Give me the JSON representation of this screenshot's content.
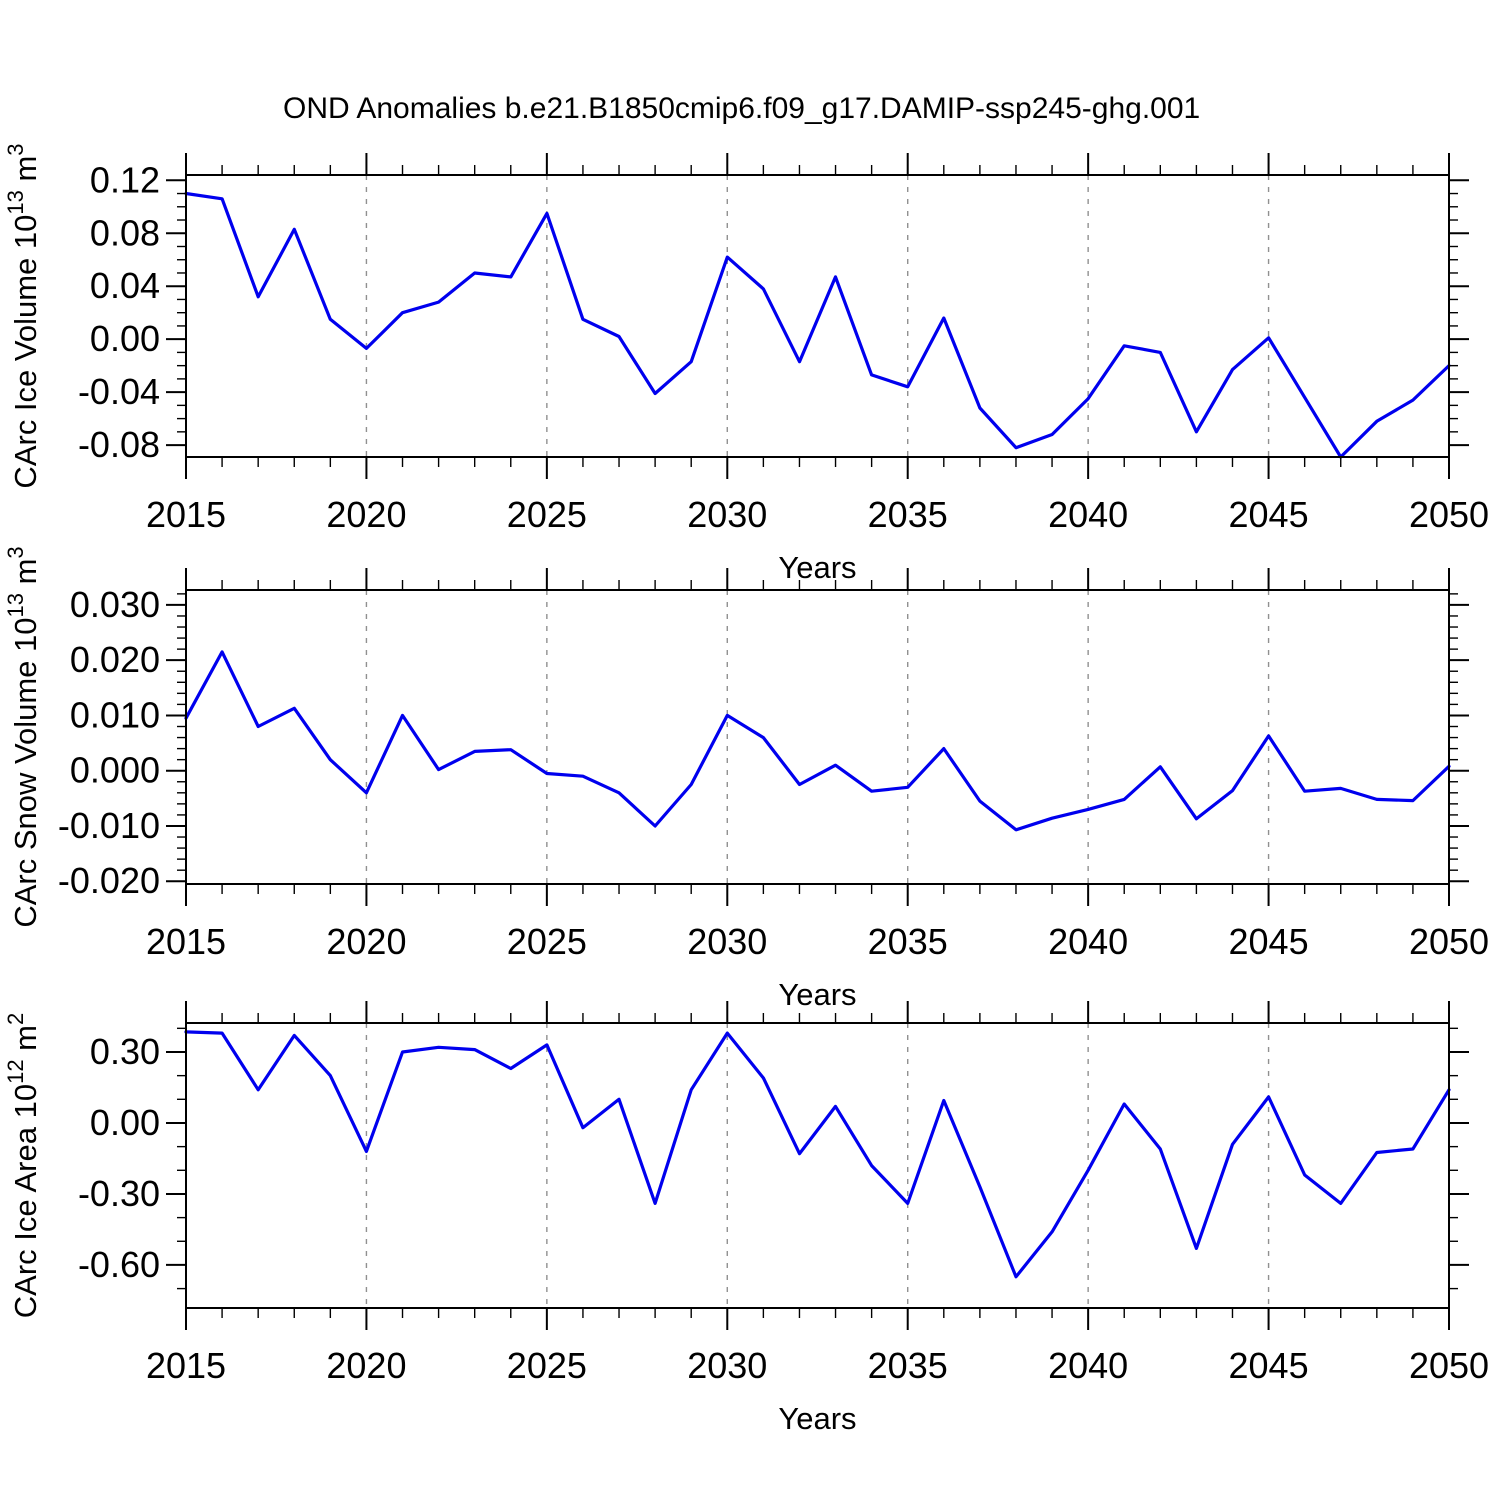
{
  "title": "OND Anomalies b.e21.B1850cmip6.f09_g17.DAMIP-ssp245-ghg.001",
  "colors": {
    "line": "#0000ee",
    "axis": "#000000",
    "grid": "#909090",
    "background": "#ffffff",
    "text": "#000000"
  },
  "x_axis": {
    "label": "Years",
    "start": 2015,
    "end": 2050,
    "major_step": 5,
    "minor_step": 1,
    "major_labels": [
      "2015",
      "2020",
      "2025",
      "2030",
      "2035",
      "2040",
      "2045",
      "2050"
    ],
    "grid_years": [
      2020,
      2025,
      2030,
      2035,
      2040,
      2045
    ]
  },
  "years": [
    2015,
    2016,
    2017,
    2018,
    2019,
    2020,
    2021,
    2022,
    2023,
    2024,
    2025,
    2026,
    2027,
    2028,
    2029,
    2030,
    2031,
    2032,
    2033,
    2034,
    2035,
    2036,
    2037,
    2038,
    2039,
    2040,
    2041,
    2042,
    2043,
    2044,
    2045,
    2046,
    2047,
    2048,
    2049,
    2050
  ],
  "chart_data": [
    {
      "type": "line",
      "name": "carc-ice-volume",
      "title": "",
      "xlabel": "Years",
      "ylabel": {
        "pre": "CArc Ice Volume 10",
        "sup1": "13",
        "mid": " m",
        "sup2": "3"
      },
      "ylim": [
        -0.089,
        0.124
      ],
      "ymajor": {
        "values": [
          0.12,
          0.08,
          0.04,
          0.0,
          -0.04,
          -0.08
        ],
        "labels": [
          "0.12",
          "0.08",
          "0.04",
          "0.00",
          "-0.04",
          "-0.08"
        ]
      },
      "yminor_step": 0.01,
      "values": [
        0.11,
        0.106,
        0.032,
        0.083,
        0.015,
        -0.007,
        0.02,
        0.028,
        0.05,
        0.047,
        0.095,
        0.015,
        0.002,
        -0.041,
        -0.017,
        0.062,
        0.038,
        -0.017,
        0.047,
        -0.027,
        -0.036,
        0.016,
        -0.052,
        -0.082,
        -0.072,
        -0.045,
        -0.005,
        -0.01,
        -0.07,
        -0.023,
        0.001,
        -0.044,
        -0.089,
        -0.062,
        -0.046,
        -0.02
      ]
    },
    {
      "type": "line",
      "name": "carc-snow-volume",
      "title": "",
      "xlabel": "Years",
      "ylabel": {
        "pre": "CArc Snow Volume 10",
        "sup1": "13",
        "mid": " m",
        "sup2": "3"
      },
      "ylim": [
        -0.0205,
        0.0327
      ],
      "ymajor": {
        "values": [
          0.03,
          0.02,
          0.01,
          0.0,
          -0.01,
          -0.02
        ],
        "labels": [
          "0.030",
          "0.020",
          "0.010",
          "0.000",
          "-0.010",
          "-0.020"
        ]
      },
      "yminor_step": 0.002,
      "values": [
        0.0095,
        0.0215,
        0.008,
        0.0113,
        0.002,
        -0.004,
        0.01,
        0.0002,
        0.0035,
        0.0038,
        -0.0005,
        -0.001,
        -0.004,
        -0.01,
        -0.0025,
        0.01,
        0.006,
        -0.0025,
        0.001,
        -0.0037,
        -0.003,
        0.004,
        -0.0055,
        -0.0107,
        -0.0086,
        -0.007,
        -0.0052,
        0.0007,
        -0.0087,
        -0.0036,
        0.0063,
        -0.0037,
        -0.0032,
        -0.0052,
        -0.0054,
        0.0008
      ]
    },
    {
      "type": "line",
      "name": "carc-ice-area",
      "title": "",
      "xlabel": "Years",
      "ylabel": {
        "pre": "CArc Ice Area 10",
        "sup1": "12",
        "mid": " m",
        "sup2": "2"
      },
      "ylim": [
        -0.782,
        0.4225
      ],
      "ymajor": {
        "values": [
          0.3,
          0.0,
          -0.3,
          -0.6
        ],
        "labels": [
          "0.30",
          "0.00",
          "-0.30",
          "-0.60"
        ]
      },
      "yminor_step": 0.1,
      "values": [
        0.385,
        0.38,
        0.14,
        0.37,
        0.2,
        -0.12,
        0.3,
        0.32,
        0.31,
        0.23,
        0.33,
        -0.02,
        0.1,
        -0.34,
        0.14,
        0.38,
        0.19,
        -0.13,
        0.07,
        -0.18,
        -0.34,
        0.095,
        -0.27,
        -0.65,
        -0.46,
        -0.2,
        0.08,
        -0.11,
        -0.53,
        -0.09,
        0.11,
        -0.22,
        -0.34,
        -0.125,
        -0.11,
        0.14
      ]
    }
  ]
}
